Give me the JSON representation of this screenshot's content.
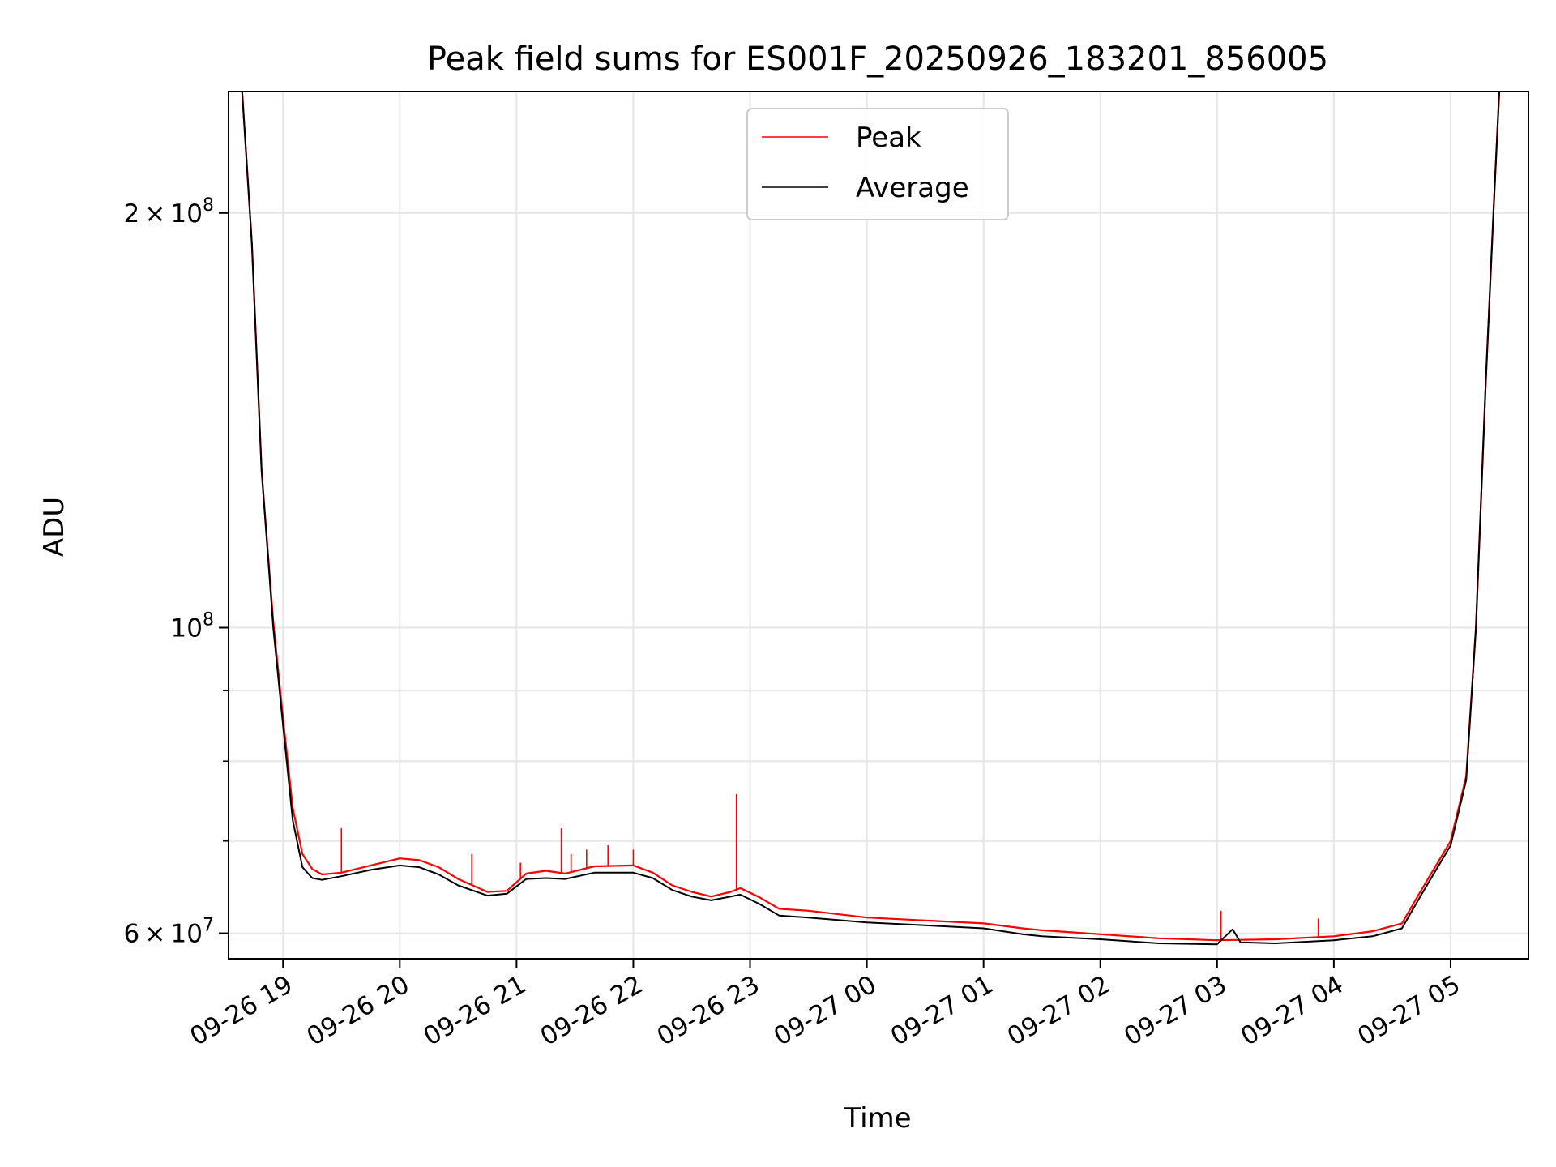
{
  "colors": {
    "peak": "#ff0000",
    "average": "#000000",
    "grid": "#e6e6e6",
    "background": "#ffffff"
  },
  "chart_data": {
    "type": "line",
    "title": "Peak field sums for ES001F_20250926_183201_856005",
    "xlabel": "Time",
    "ylabel": "ADU",
    "yscale": "log",
    "grid": true,
    "legend_position": "top-center",
    "xlim": [
      "2025-09-26 18:32",
      "2025-09-27 05:40"
    ],
    "ylim": [
      57500000,
      245000000
    ],
    "x_ticks": [
      {
        "time": "2025-09-26 19:00",
        "label": "09-26 19"
      },
      {
        "time": "2025-09-26 20:00",
        "label": "09-26 20"
      },
      {
        "time": "2025-09-26 21:00",
        "label": "09-26 21"
      },
      {
        "time": "2025-09-26 22:00",
        "label": "09-26 22"
      },
      {
        "time": "2025-09-26 23:00",
        "label": "09-26 23"
      },
      {
        "time": "2025-09-27 00:00",
        "label": "09-27 00"
      },
      {
        "time": "2025-09-27 01:00",
        "label": "09-27 01"
      },
      {
        "time": "2025-09-27 02:00",
        "label": "09-27 02"
      },
      {
        "time": "2025-09-27 03:00",
        "label": "09-27 03"
      },
      {
        "time": "2025-09-27 04:00",
        "label": "09-27 04"
      },
      {
        "time": "2025-09-27 05:00",
        "label": "09-27 05"
      }
    ],
    "y_ticks": [
      {
        "value": 60000000,
        "mantissa": "6",
        "exponent": "7"
      },
      {
        "value": 100000000,
        "mantissa": "",
        "exponent": "8"
      },
      {
        "value": 200000000,
        "mantissa": "2",
        "exponent": "8"
      }
    ],
    "y_minor_ticks": [
      70000000,
      80000000,
      90000000
    ],
    "series": [
      {
        "name": "Peak",
        "color": "#ff0000",
        "points": [
          [
            "2025-09-26 18:39",
            245000000
          ],
          [
            "2025-09-26 18:44",
            190000000
          ],
          [
            "2025-09-26 18:49",
            130000000
          ],
          [
            "2025-09-26 18:55",
            101000000
          ],
          [
            "2025-09-26 19:00",
            86000000
          ],
          [
            "2025-09-26 19:05",
            74000000
          ],
          [
            "2025-09-26 19:10",
            68500000
          ],
          [
            "2025-09-26 19:15",
            66800000
          ],
          [
            "2025-09-26 19:20",
            66200000
          ],
          [
            "2025-09-26 19:30",
            66400000
          ],
          [
            "2025-09-26 19:45",
            67200000
          ],
          [
            "2025-09-26 20:00",
            68000000
          ],
          [
            "2025-09-26 20:10",
            67800000
          ],
          [
            "2025-09-26 20:20",
            67000000
          ],
          [
            "2025-09-26 20:30",
            65700000
          ],
          [
            "2025-09-26 20:45",
            64300000
          ],
          [
            "2025-09-26 20:55",
            64400000
          ],
          [
            "2025-09-26 21:05",
            66300000
          ],
          [
            "2025-09-26 21:15",
            66600000
          ],
          [
            "2025-09-26 21:25",
            66300000
          ],
          [
            "2025-09-26 21:40",
            67100000
          ],
          [
            "2025-09-26 22:00",
            67200000
          ],
          [
            "2025-09-26 22:10",
            66400000
          ],
          [
            "2025-09-26 22:20",
            65000000
          ],
          [
            "2025-09-26 22:30",
            64300000
          ],
          [
            "2025-09-26 22:40",
            63800000
          ],
          [
            "2025-09-26 22:50",
            64300000
          ],
          [
            "2025-09-26 22:55",
            64700000
          ],
          [
            "2025-09-26 23:05",
            63700000
          ],
          [
            "2025-09-26 23:15",
            62500000
          ],
          [
            "2025-09-26 23:30",
            62300000
          ],
          [
            "2025-09-27 00:00",
            61600000
          ],
          [
            "2025-09-27 00:30",
            61300000
          ],
          [
            "2025-09-27 01:00",
            61000000
          ],
          [
            "2025-09-27 01:20",
            60500000
          ],
          [
            "2025-09-27 01:30",
            60300000
          ],
          [
            "2025-09-27 02:00",
            59900000
          ],
          [
            "2025-09-27 02:30",
            59500000
          ],
          [
            "2025-09-27 03:00",
            59300000
          ],
          [
            "2025-09-27 03:30",
            59400000
          ],
          [
            "2025-09-27 04:00",
            59700000
          ],
          [
            "2025-09-27 04:20",
            60200000
          ],
          [
            "2025-09-27 04:35",
            61000000
          ],
          [
            "2025-09-27 04:45",
            64500000
          ],
          [
            "2025-09-27 05:00",
            70000000
          ],
          [
            "2025-09-27 05:08",
            78000000
          ],
          [
            "2025-09-27 05:13",
            100000000
          ],
          [
            "2025-09-27 05:18",
            150000000
          ],
          [
            "2025-09-27 05:22",
            200000000
          ],
          [
            "2025-09-27 05:25",
            245000000
          ]
        ],
        "spikes": [
          [
            "2025-09-26 19:07",
            71500000
          ],
          [
            "2025-09-26 19:30",
            71500000
          ],
          [
            "2025-09-26 20:37",
            68500000
          ],
          [
            "2025-09-26 21:02",
            67500000
          ],
          [
            "2025-09-26 21:23",
            71500000
          ],
          [
            "2025-09-26 21:28",
            68500000
          ],
          [
            "2025-09-26 21:36",
            69000000
          ],
          [
            "2025-09-26 21:47",
            69500000
          ],
          [
            "2025-09-26 22:00",
            69000000
          ],
          [
            "2025-09-26 22:53",
            75700000
          ],
          [
            "2025-09-27 03:02",
            62300000
          ],
          [
            "2025-09-27 03:52",
            61500000
          ],
          [
            "2025-09-27 04:40",
            62500000
          ]
        ]
      },
      {
        "name": "Average",
        "color": "#000000",
        "points": [
          [
            "2025-09-26 18:39",
            245000000
          ],
          [
            "2025-09-26 18:44",
            190000000
          ],
          [
            "2025-09-26 18:49",
            130000000
          ],
          [
            "2025-09-26 18:55",
            100000000
          ],
          [
            "2025-09-26 19:00",
            85000000
          ],
          [
            "2025-09-26 19:05",
            72500000
          ],
          [
            "2025-09-26 19:10",
            67000000
          ],
          [
            "2025-09-26 19:15",
            65800000
          ],
          [
            "2025-09-26 19:20",
            65600000
          ],
          [
            "2025-09-26 19:30",
            66000000
          ],
          [
            "2025-09-26 19:45",
            66700000
          ],
          [
            "2025-09-26 20:00",
            67200000
          ],
          [
            "2025-09-26 20:10",
            67000000
          ],
          [
            "2025-09-26 20:20",
            66200000
          ],
          [
            "2025-09-26 20:30",
            65000000
          ],
          [
            "2025-09-26 20:45",
            63900000
          ],
          [
            "2025-09-26 20:55",
            64100000
          ],
          [
            "2025-09-26 21:05",
            65700000
          ],
          [
            "2025-09-26 21:15",
            65800000
          ],
          [
            "2025-09-26 21:25",
            65700000
          ],
          [
            "2025-09-26 21:40",
            66400000
          ],
          [
            "2025-09-26 22:00",
            66400000
          ],
          [
            "2025-09-26 22:10",
            65800000
          ],
          [
            "2025-09-26 22:20",
            64500000
          ],
          [
            "2025-09-26 22:30",
            63800000
          ],
          [
            "2025-09-26 22:40",
            63400000
          ],
          [
            "2025-09-26 22:50",
            63800000
          ],
          [
            "2025-09-26 22:55",
            64000000
          ],
          [
            "2025-09-26 23:05",
            63000000
          ],
          [
            "2025-09-26 23:15",
            61800000
          ],
          [
            "2025-09-26 23:30",
            61600000
          ],
          [
            "2025-09-27 00:00",
            61100000
          ],
          [
            "2025-09-27 00:30",
            60800000
          ],
          [
            "2025-09-27 01:00",
            60500000
          ],
          [
            "2025-09-27 01:20",
            59900000
          ],
          [
            "2025-09-27 01:30",
            59700000
          ],
          [
            "2025-09-27 02:00",
            59400000
          ],
          [
            "2025-09-27 02:30",
            59000000
          ],
          [
            "2025-09-27 03:00",
            58900000
          ],
          [
            "2025-09-27 03:08",
            60400000
          ],
          [
            "2025-09-27 03:12",
            59100000
          ],
          [
            "2025-09-27 03:30",
            59000000
          ],
          [
            "2025-09-27 04:00",
            59300000
          ],
          [
            "2025-09-27 04:20",
            59700000
          ],
          [
            "2025-09-27 04:35",
            60500000
          ],
          [
            "2025-09-27 04:45",
            64000000
          ],
          [
            "2025-09-27 05:00",
            69500000
          ],
          [
            "2025-09-27 05:08",
            77500000
          ],
          [
            "2025-09-27 05:13",
            100000000
          ],
          [
            "2025-09-27 05:18",
            150000000
          ],
          [
            "2025-09-27 05:22",
            200000000
          ],
          [
            "2025-09-27 05:25",
            245000000
          ]
        ]
      }
    ]
  }
}
